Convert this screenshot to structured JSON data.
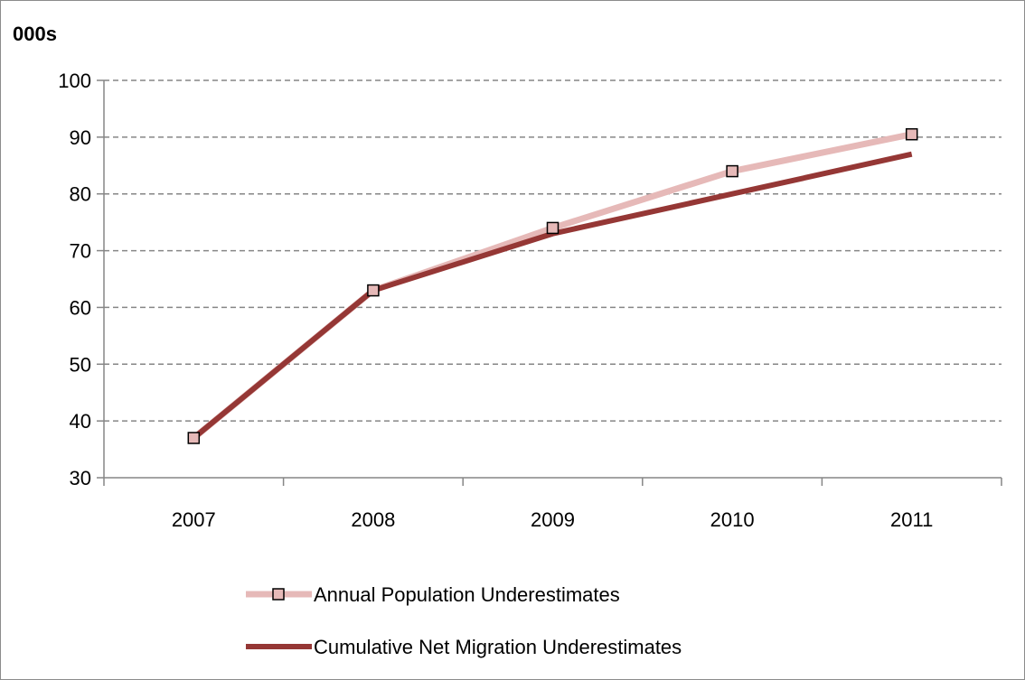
{
  "chart_data": {
    "type": "line",
    "unit_label": "000s",
    "x": [
      "2007",
      "2008",
      "2009",
      "2010",
      "2011"
    ],
    "ylim": [
      30,
      100
    ],
    "yticks": [
      30,
      40,
      50,
      60,
      70,
      80,
      90,
      100
    ],
    "grid": true,
    "legend_position": "bottom",
    "series": [
      {
        "name": "Annual Population Underestimates",
        "values": [
          37,
          63,
          74,
          84,
          90.5
        ],
        "color": "#e6b9b8",
        "marker": "square",
        "marker_fill": "#e6b9b8",
        "marker_stroke": "#000000"
      },
      {
        "name": "Cumulative Net Migration Underestimates",
        "values": [
          37,
          63,
          73,
          80,
          87
        ],
        "color": "#953735",
        "marker": "none"
      }
    ]
  }
}
